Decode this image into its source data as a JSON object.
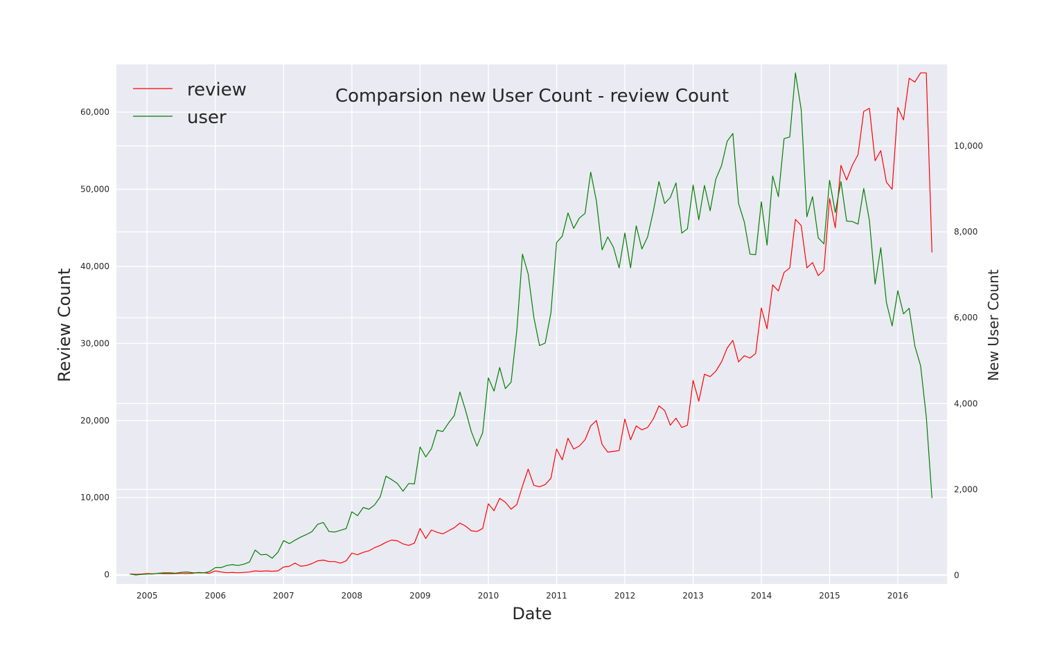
{
  "chart_data": {
    "type": "line",
    "title": "Comparsion new User Count - review Count",
    "xlabel": "Date",
    "ylabel_left": "Review Count",
    "ylabel_right": "New User Count",
    "xlim": [
      2004.55,
      2016.72
    ],
    "ylim_left": [
      -1200,
      66200
    ],
    "ylim_right": [
      -200,
      11900
    ],
    "x_ticks": [
      2005,
      2006,
      2007,
      2008,
      2009,
      2010,
      2011,
      2012,
      2013,
      2014,
      2015,
      2016
    ],
    "x_tick_labels": [
      "2005",
      "2006",
      "2007",
      "2008",
      "2009",
      "2010",
      "2011",
      "2012",
      "2013",
      "2014",
      "2015",
      "2016"
    ],
    "y_left_ticks": [
      0,
      10000,
      20000,
      30000,
      40000,
      50000,
      60000
    ],
    "y_left_tick_labels": [
      "0",
      "10,000",
      "20,000",
      "30,000",
      "40,000",
      "50,000",
      "60,000"
    ],
    "y_right_ticks": [
      0,
      2000,
      4000,
      6000,
      8000,
      10000
    ],
    "y_right_tick_labels": [
      "0",
      "2,000",
      "4,000",
      "6,000",
      "8,000",
      "10,000"
    ],
    "grid": true,
    "legend_position": "top-left",
    "x_start": 2004.75,
    "x_step": 0.08333,
    "series": [
      {
        "name": "review",
        "axis": "left",
        "color": "#ff0000",
        "values": [
          100,
          50,
          80,
          150,
          120,
          160,
          140,
          130,
          150,
          170,
          150,
          180,
          300,
          250,
          180,
          500,
          350,
          260,
          300,
          250,
          300,
          350,
          500,
          450,
          500,
          450,
          500,
          1000,
          1100,
          1500,
          1100,
          1200,
          1450,
          1800,
          1900,
          1700,
          1700,
          1500,
          1800,
          2800,
          2600,
          2900,
          3100,
          3500,
          3800,
          4200,
          4500,
          4400,
          4000,
          3800,
          4100,
          6000,
          4700,
          5800,
          5500,
          5300,
          5700,
          6100,
          6700,
          6300,
          5700,
          5600,
          6000,
          9200,
          8300,
          9900,
          9400,
          8500,
          9100,
          11500,
          13700,
          11600,
          11400,
          11700,
          12500,
          16300,
          14900,
          17700,
          16300,
          16700,
          17500,
          19300,
          20000,
          16900,
          15900,
          16000,
          16100,
          20200,
          17500,
          19300,
          18800,
          19100,
          20200,
          21900,
          21300,
          19400,
          20300,
          19100,
          19400,
          25200,
          22500,
          26000,
          25700,
          26400,
          27600,
          29400,
          30400,
          27600,
          28400,
          28100,
          28700,
          34600,
          31900,
          37600,
          36800,
          39200,
          39800,
          46100,
          45300,
          39800,
          40500,
          38800,
          39500,
          48800,
          45000,
          53100,
          51200,
          53100,
          54500,
          60100,
          60500,
          53700,
          55000,
          50900,
          50000,
          60600,
          59000,
          64400,
          63900,
          65100,
          65100,
          41800
        ]
      },
      {
        "name": "user",
        "axis": "right",
        "color": "#008000",
        "values": [
          30,
          10,
          20,
          30,
          30,
          50,
          60,
          60,
          50,
          70,
          80,
          60,
          60,
          60,
          90,
          180,
          180,
          230,
          250,
          230,
          260,
          310,
          590,
          480,
          490,
          400,
          540,
          810,
          740,
          820,
          890,
          950,
          1020,
          1190,
          1230,
          1020,
          1010,
          1050,
          1090,
          1480,
          1390,
          1580,
          1540,
          1640,
          1830,
          2310,
          2230,
          2140,
          1960,
          2140,
          2130,
          2990,
          2760,
          2950,
          3380,
          3350,
          3550,
          3720,
          4270,
          3840,
          3350,
          3010,
          3320,
          4600,
          4290,
          4840,
          4350,
          4500,
          5700,
          7480,
          7020,
          6010,
          5350,
          5410,
          6110,
          7750,
          7900,
          8440,
          8080,
          8320,
          8430,
          9390,
          8720,
          7580,
          7880,
          7640,
          7160,
          7970,
          7160,
          8140,
          7600,
          7880,
          8470,
          9170,
          8660,
          8800,
          9140,
          7970,
          8070,
          9090,
          8280,
          9080,
          8490,
          9230,
          9540,
          10110,
          10290,
          8660,
          8230,
          7480,
          7470,
          8700,
          7690,
          9300,
          8820,
          10170,
          10210,
          11700,
          10850,
          8350,
          8820,
          7860,
          7720,
          9200,
          8450,
          9170,
          8250,
          8240,
          8180,
          9010,
          8260,
          6780,
          7630,
          6350,
          5810,
          6630,
          6090,
          6220,
          5340,
          4880,
          3690,
          1800
        ]
      }
    ]
  }
}
